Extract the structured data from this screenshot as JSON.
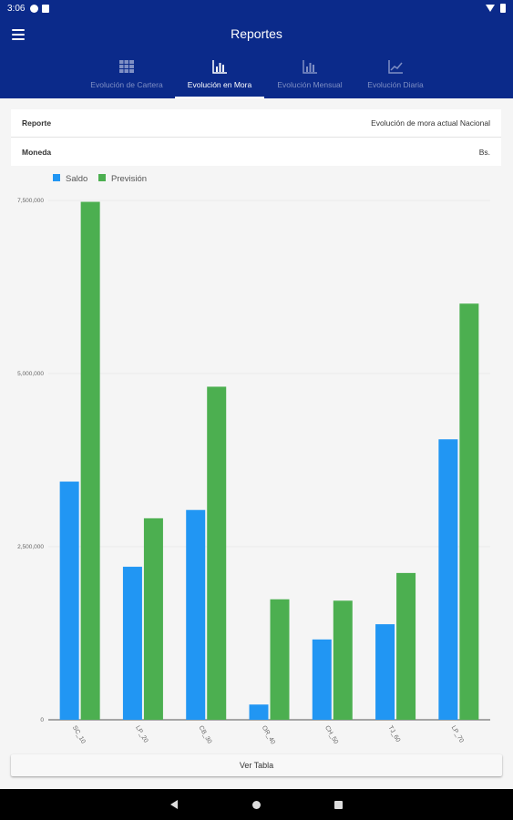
{
  "status_bar": {
    "time": "3:06"
  },
  "app_bar": {
    "title": "Reportes",
    "tabs": [
      {
        "label": "Evolución de Cartera",
        "icon": "grid-table-icon",
        "active": false
      },
      {
        "label": "Evolución en Mora",
        "icon": "bar-chart-icon",
        "active": true
      },
      {
        "label": "Evolución Mensual",
        "icon": "bar-chart-icon",
        "active": false
      },
      {
        "label": "Evolución Diaria",
        "icon": "line-chart-icon",
        "active": false
      }
    ]
  },
  "info": {
    "report_label": "Reporte",
    "report_value": "Evolución de mora actual Nacional",
    "currency_label": "Moneda",
    "currency_value": "Bs."
  },
  "chart_data": {
    "type": "bar",
    "categories": [
      "SC_10",
      "LP_20",
      "CB_30",
      "OR_40",
      "CH_50",
      "TJ_60",
      "LP_70"
    ],
    "series": [
      {
        "name": "Saldo",
        "color": "#2196f3",
        "values": [
          3440000,
          2210000,
          3030000,
          220000,
          1160000,
          1380000,
          4050000
        ]
      },
      {
        "name": "Previsión",
        "color": "#4caf50",
        "values": [
          7480000,
          2910000,
          4810000,
          1740000,
          1720000,
          2120000,
          6010000
        ]
      }
    ],
    "yticks": [
      "0",
      "2,500,000",
      "5,000,000",
      "7,500,000"
    ],
    "ylim": [
      0,
      7500000
    ],
    "legend": "top-left",
    "grid": true
  },
  "actions": {
    "view_table": "Ver Tabla"
  }
}
